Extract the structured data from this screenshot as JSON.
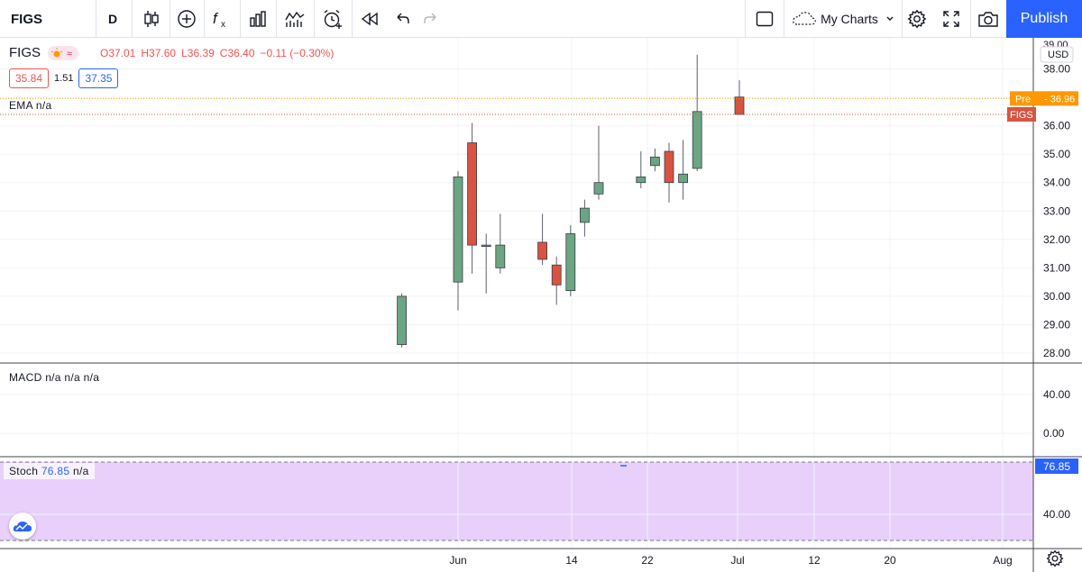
{
  "toolbar": {
    "symbol": "FIGS",
    "interval": "D",
    "my_charts_label": "My Charts",
    "publish_label": "Publish"
  },
  "legend": {
    "symbol": "FIGS",
    "open": "O37.01",
    "high": "H37.60",
    "low": "L36.39",
    "close": "C36.40",
    "change": "−0.11 (−0.30%)",
    "bid": "35.84",
    "spread": "1.51",
    "ask": "37.35",
    "ema_label": "EMA",
    "ema_value": "n/a",
    "macd_label": "MACD",
    "macd_values": "n/a n/a n/a",
    "stoch_label": "Stoch",
    "stoch_value": "76.85",
    "stoch_value2": "n/a"
  },
  "price_axis": {
    "currency": "USD",
    "ticks": [
      "39.00",
      "38.00",
      "37.00",
      "36.00",
      "35.00",
      "34.00",
      "33.00",
      "32.00",
      "31.00",
      "30.00",
      "29.00",
      "28.00"
    ],
    "pre_label": "Pre",
    "pre_value": "36.96",
    "symbol_tag": "FIGS"
  },
  "macd_axis": {
    "ticks": [
      "40.00",
      "0.00"
    ]
  },
  "stoch_axis": {
    "ticks": [
      "76.85",
      "40.00"
    ]
  },
  "time_axis": {
    "labels": [
      "Jun",
      "14",
      "22",
      "Jul",
      "12",
      "20",
      "Aug"
    ]
  },
  "colors": {
    "up": "#6ba583",
    "down": "#d75442",
    "accent": "#2962ff",
    "pre": "#ff9800",
    "stoch_band": "#e9d0fb"
  },
  "chart_data": {
    "type": "candlestick",
    "symbol": "FIGS",
    "interval": "D",
    "ylim": [
      27.6,
      39.0
    ],
    "candles": [
      {
        "date": "2021-05-28",
        "open": 28.3,
        "high": 30.1,
        "low": 28.2,
        "close": 30.0
      },
      {
        "date": "2021-06-01",
        "open": 30.5,
        "high": 34.4,
        "low": 29.5,
        "close": 34.2
      },
      {
        "date": "2021-06-02",
        "open": 35.4,
        "high": 36.1,
        "low": 30.8,
        "close": 31.8
      },
      {
        "date": "2021-06-03",
        "open": 31.8,
        "high": 32.2,
        "low": 30.1,
        "close": 31.8
      },
      {
        "date": "2021-06-04",
        "open": 31.0,
        "high": 32.9,
        "low": 30.8,
        "close": 31.8
      },
      {
        "date": "2021-06-07",
        "open": 31.9,
        "high": 32.9,
        "low": 31.1,
        "close": 31.3
      },
      {
        "date": "2021-06-08",
        "open": 31.1,
        "high": 31.4,
        "low": 29.7,
        "close": 30.4
      },
      {
        "date": "2021-06-09",
        "open": 30.2,
        "high": 32.5,
        "low": 30.0,
        "close": 32.2
      },
      {
        "date": "2021-06-10",
        "open": 32.6,
        "high": 33.4,
        "low": 32.1,
        "close": 33.1
      },
      {
        "date": "2021-06-11",
        "open": 33.6,
        "high": 36.0,
        "low": 33.4,
        "close": 34.0
      },
      {
        "date": "2021-06-14",
        "open": 34.0,
        "high": 35.1,
        "low": 33.8,
        "close": 34.2
      },
      {
        "date": "2021-06-15",
        "open": 34.6,
        "high": 35.2,
        "low": 34.4,
        "close": 34.9
      },
      {
        "date": "2021-06-16",
        "open": 35.1,
        "high": 35.4,
        "low": 33.3,
        "close": 34.0
      },
      {
        "date": "2021-06-17",
        "open": 34.0,
        "high": 35.5,
        "low": 33.4,
        "close": 34.3
      },
      {
        "date": "2021-06-18",
        "open": 34.5,
        "high": 38.5,
        "low": 34.4,
        "close": 36.5
      },
      {
        "date": "2021-06-21",
        "open": 37.01,
        "high": 37.6,
        "low": 36.39,
        "close": 36.4
      }
    ],
    "pre_market_price": 36.96,
    "indicators": [
      "EMA",
      "MACD",
      "Stoch"
    ],
    "stoch_value": 76.85
  }
}
